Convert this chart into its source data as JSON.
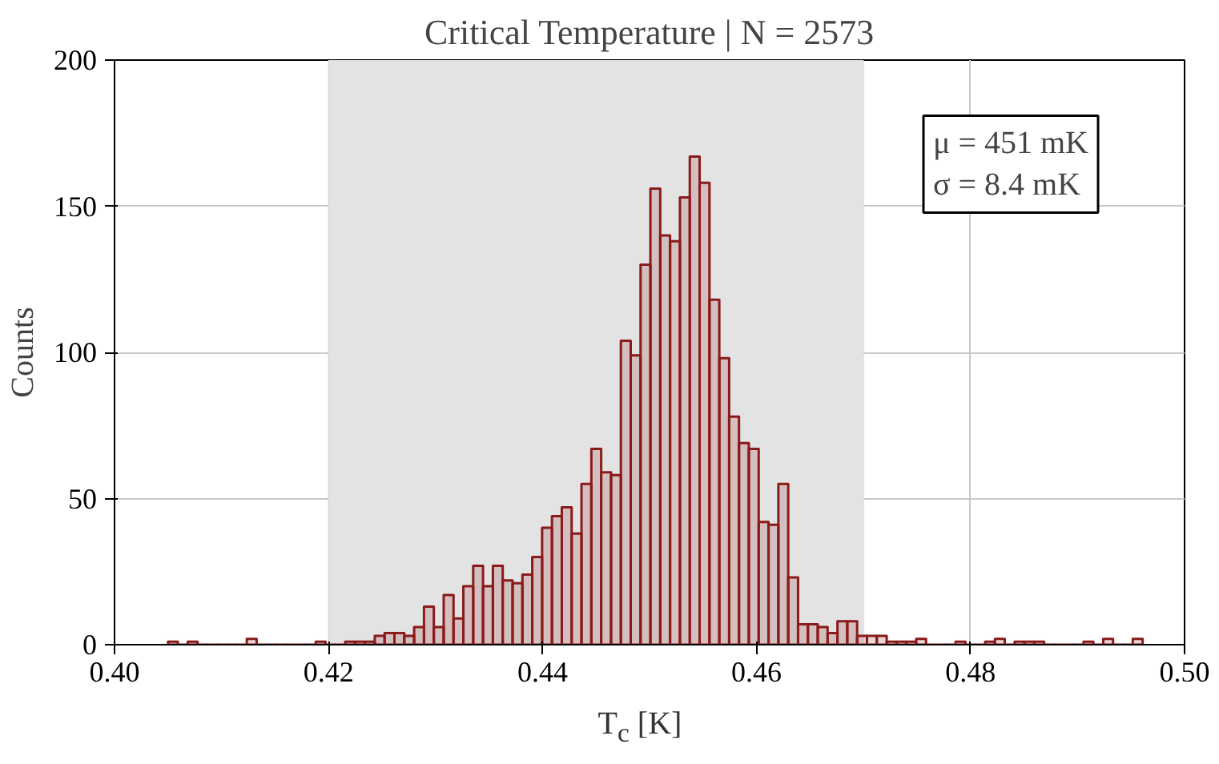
{
  "chart_data": {
    "type": "histogram",
    "title": "Critical Temperature | N = 2573",
    "xlabel": "T$_{c}$ [K]",
    "ylabel": "Counts",
    "bins": [
      0.405,
      0.40592,
      0.40684,
      0.40776,
      0.40868,
      0.4096,
      0.41052,
      0.41144,
      0.41236,
      0.41328,
      0.4142,
      0.41512,
      0.41604,
      0.41696,
      0.41788,
      0.4188,
      0.41972,
      0.42064,
      0.42156,
      0.42248,
      0.4234,
      0.42432,
      0.42524,
      0.42616,
      0.42708,
      0.428,
      0.42892,
      0.42984,
      0.43076,
      0.43168,
      0.4326,
      0.43352,
      0.43444,
      0.43536,
      0.43628,
      0.4372,
      0.43812,
      0.43904,
      0.43996,
      0.44088,
      0.4418,
      0.44272,
      0.44364,
      0.44456,
      0.44548,
      0.4464,
      0.44732,
      0.44824,
      0.44916,
      0.45008,
      0.451,
      0.45192,
      0.45284,
      0.45376,
      0.45468,
      0.4556,
      0.45652,
      0.45744,
      0.45836,
      0.45928,
      0.4602,
      0.46112,
      0.46204,
      0.46296,
      0.46388,
      0.4648,
      0.46572,
      0.46664,
      0.46756,
      0.46848,
      0.4694,
      0.47032,
      0.47124,
      0.47216,
      0.47308,
      0.474,
      0.47492,
      0.47584,
      0.47676,
      0.47768,
      0.4786,
      0.47952,
      0.48044,
      0.48136,
      0.48228,
      0.4832,
      0.48412,
      0.48504,
      0.48596,
      0.48688,
      0.4878,
      0.48872,
      0.48964,
      0.49056,
      0.49148,
      0.4924,
      0.49332,
      0.49424,
      0.49516,
      0.49608
    ],
    "values": [
      1,
      0,
      1,
      0,
      0,
      0,
      0,
      0,
      2,
      0,
      0,
      0,
      0,
      0,
      0,
      1,
      0,
      0,
      1,
      1,
      1,
      3,
      4,
      4,
      3,
      6,
      13,
      6,
      17,
      9,
      20,
      27,
      20,
      27,
      22,
      21,
      24,
      30,
      40,
      44,
      47,
      38,
      55,
      67,
      59,
      58,
      104,
      99,
      130,
      156,
      140,
      138,
      153,
      167,
      158,
      118,
      98,
      78,
      69,
      67,
      42,
      41,
      55,
      23,
      7,
      7,
      6,
      4,
      8,
      8,
      3,
      3,
      3,
      1,
      1,
      1,
      2,
      0,
      0,
      0,
      1,
      0,
      0,
      1,
      2,
      0,
      1,
      1,
      1,
      0,
      0,
      0,
      0,
      1,
      0,
      2,
      0,
      0,
      2
    ],
    "color": "#8b1a1a",
    "xlim": [
      0.4,
      0.5
    ],
    "xticks": [
      {
        "value": 0.4,
        "label": "0.40"
      },
      0.42,
      0.44,
      0.46,
      0.48,
      {
        "value": 0.5,
        "label": "0.50"
      }
    ],
    "ylim": [
      0,
      200
    ],
    "yticks": [
      0,
      50,
      100,
      150,
      200
    ],
    "grid": true,
    "bands": [
      {
        "axis": "x",
        "from": 0.42,
        "to": 0.47,
        "color": "#e3e3e3"
      }
    ],
    "annotations": [
      "μ = 451 mK",
      "σ = 8.4 mK"
    ]
  }
}
